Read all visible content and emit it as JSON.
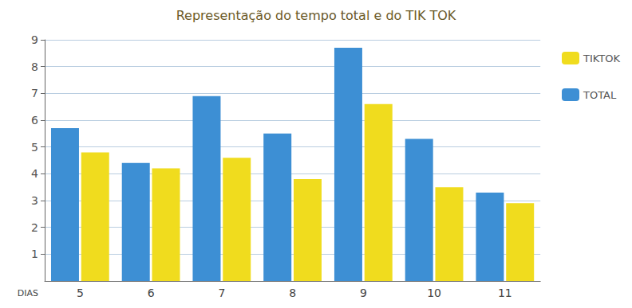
{
  "chart_data": {
    "type": "bar",
    "title": "Representação do tempo total e do TIK TOK",
    "x_label": "DIAS",
    "categories": [
      "5",
      "6",
      "7",
      "8",
      "9",
      "10",
      "11"
    ],
    "series": [
      {
        "name": "TOTAL",
        "color": "#3d8fd4",
        "values": [
          5.7,
          4.4,
          6.9,
          5.5,
          8.7,
          5.3,
          3.3
        ]
      },
      {
        "name": "TIKTOK",
        "color": "#f0dc1e",
        "values": [
          4.8,
          4.2,
          4.6,
          3.8,
          6.6,
          3.5,
          2.9
        ]
      }
    ],
    "ylim": [
      0,
      9
    ],
    "yticks": [
      1,
      2,
      3,
      4,
      5,
      6,
      7,
      8,
      9
    ],
    "grid": true,
    "legend": "top right"
  }
}
